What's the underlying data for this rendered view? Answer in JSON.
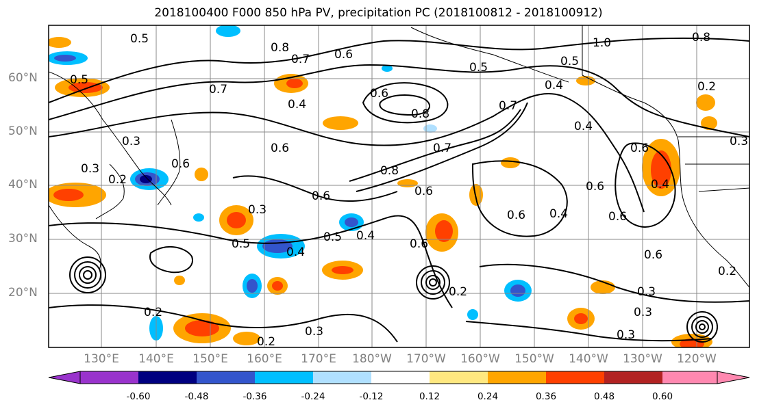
{
  "title": "2018100400 F000 850 hPa PV, precipitation PC (2018100812 - 2018100912)",
  "lat_labels": [
    "60°N",
    "50°N",
    "40°N",
    "30°N",
    "20°N"
  ],
  "lon_labels": [
    "130°E",
    "140°E",
    "150°E",
    "160°E",
    "170°E",
    "180°W",
    "170°W",
    "160°W",
    "150°W",
    "140°W",
    "130°W",
    "120°W"
  ],
  "colorbar": {
    "colors": [
      "#9933cc",
      "#000080",
      "#3355cc",
      "#00bfff",
      "#b0e0ff",
      "#ffffff",
      "#ffe880",
      "#ffa500",
      "#ff4000",
      "#b22222",
      "#ff88b0"
    ],
    "tick_labels": [
      "-0.60",
      "-0.48",
      "-0.36",
      "-0.24",
      "-0.12",
      "0.12",
      "0.24",
      "0.36",
      "0.48",
      "0.60"
    ]
  },
  "contour_labels": [
    "0.5",
    "0.8",
    "0.7",
    "0.6",
    "0.5",
    "1.0",
    "0.8",
    "0.5",
    "0.5",
    "0.7",
    "0.6",
    "0.8",
    "0.4",
    "0.7",
    "0.4",
    "0.4",
    "0.2",
    "0.3",
    "0.7",
    "0.6",
    "0.6",
    "0.3",
    "0.6",
    "0.3",
    "0.2",
    "0.8",
    "0.6",
    "0.4",
    "0.6",
    "0.6",
    "0.6",
    "0.4",
    "0.6",
    "0.3",
    "0.5",
    "0.5",
    "0.4",
    "0.4",
    "0.6",
    "0.6",
    "0.3",
    "0.2",
    "0.3",
    "0.2",
    "0.3",
    "0.2",
    "0.3",
    "0.2"
  ]
}
